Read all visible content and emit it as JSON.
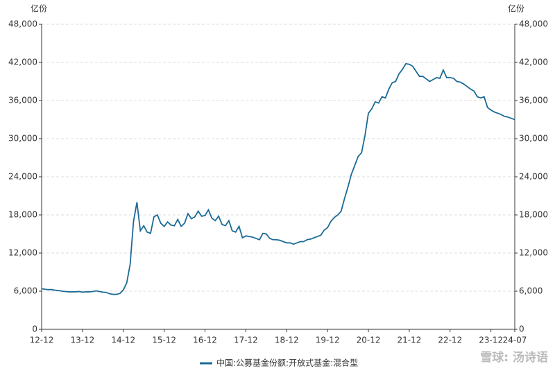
{
  "chart_data": {
    "type": "line",
    "y_unit": "亿份",
    "y2_unit": "亿份",
    "categories": [
      "12-12",
      null,
      null,
      null,
      null,
      null,
      null,
      null,
      null,
      null,
      null,
      null,
      "13-12",
      null,
      null,
      null,
      null,
      null,
      null,
      null,
      null,
      null,
      null,
      null,
      "14-12",
      null,
      null,
      null,
      null,
      null,
      null,
      null,
      null,
      null,
      null,
      null,
      "15-12",
      null,
      null,
      null,
      null,
      null,
      null,
      null,
      null,
      null,
      null,
      null,
      "16-12",
      null,
      null,
      null,
      null,
      null,
      null,
      null,
      null,
      null,
      null,
      null,
      "17-12",
      null,
      null,
      null,
      null,
      null,
      null,
      null,
      null,
      null,
      null,
      null,
      "18-12",
      null,
      null,
      null,
      null,
      null,
      null,
      null,
      null,
      null,
      null,
      null,
      "19-12",
      null,
      null,
      null,
      null,
      null,
      null,
      null,
      null,
      null,
      null,
      null,
      "20-12",
      null,
      null,
      null,
      null,
      null,
      null,
      null,
      null,
      null,
      null,
      null,
      "21-12",
      null,
      null,
      null,
      null,
      null,
      null,
      null,
      null,
      null,
      null,
      null,
      "22-12",
      null,
      null,
      null,
      null,
      null,
      null,
      null,
      null,
      null,
      null,
      null,
      "23-12",
      null,
      null,
      null,
      null,
      null,
      null,
      "24-07"
    ],
    "series": [
      {
        "name": "中国:公募基金份额:开放式基金:混合型",
        "color": "#1b6a96",
        "values": [
          6400,
          6300,
          6250,
          6250,
          6150,
          6100,
          6000,
          5950,
          5900,
          5900,
          5900,
          5950,
          5850,
          5900,
          5900,
          5950,
          6050,
          5950,
          5850,
          5800,
          5600,
          5500,
          5500,
          5650,
          6200,
          7300,
          10200,
          17000,
          20000,
          15500,
          16300,
          15300,
          15100,
          17700,
          18000,
          16700,
          16200,
          16900,
          16400,
          16300,
          17300,
          16200,
          16700,
          18200,
          17400,
          17700,
          18600,
          17800,
          17900,
          18800,
          17500,
          17100,
          17800,
          16500,
          16300,
          17100,
          15500,
          15300,
          16200,
          14400,
          14700,
          14600,
          14500,
          14300,
          14100,
          15100,
          15000,
          14300,
          14100,
          14100,
          14000,
          13800,
          13600,
          13600,
          13400,
          13600,
          13800,
          13800,
          14100,
          14200,
          14400,
          14600,
          14800,
          15600,
          16000,
          17000,
          17600,
          18000,
          18600,
          20600,
          22400,
          24400,
          25800,
          27200,
          27800,
          30500,
          34000,
          34700,
          35800,
          35600,
          36600,
          36400,
          37800,
          38800,
          39000,
          40200,
          40900,
          41800,
          41700,
          41400,
          40600,
          39800,
          39800,
          39400,
          39000,
          39300,
          39600,
          39500,
          40800,
          39600,
          39600,
          39500,
          39000,
          38900,
          38600,
          38200,
          37800,
          37500,
          36600,
          36400,
          36600,
          34900,
          34500,
          34200,
          34000,
          33800,
          33500,
          33400,
          33200,
          33000
        ]
      }
    ],
    "ylim": [
      0,
      48000
    ],
    "yticks": [
      0,
      {
        "value": 6000,
        "label": "6,000"
      },
      {
        "value": 12000,
        "label": "12,000"
      },
      {
        "value": 18000,
        "label": "18,000"
      },
      {
        "value": 24000,
        "label": "24,000"
      },
      {
        "value": 30000,
        "label": "30,000"
      },
      {
        "value": 36000,
        "label": "36,000"
      },
      {
        "value": 42000,
        "label": "42,000"
      },
      {
        "value": 48000,
        "label": "48,000"
      }
    ],
    "y2lim": [
      0,
      48000
    ],
    "y2ticks": [
      0,
      {
        "value": 6000,
        "label": "6,000"
      },
      {
        "value": 12000,
        "label": "12,000"
      },
      {
        "value": 18000,
        "label": "18,000"
      },
      {
        "value": 24000,
        "label": "24,000"
      },
      {
        "value": 30000,
        "label": "30,000"
      },
      {
        "value": 36000,
        "label": "36,000"
      },
      {
        "value": 42000,
        "label": "42,000"
      },
      {
        "value": 48000,
        "label": "48,000"
      }
    ],
    "grid": true,
    "legend": "bottom",
    "watermark": "雪球: 汤诗语"
  }
}
